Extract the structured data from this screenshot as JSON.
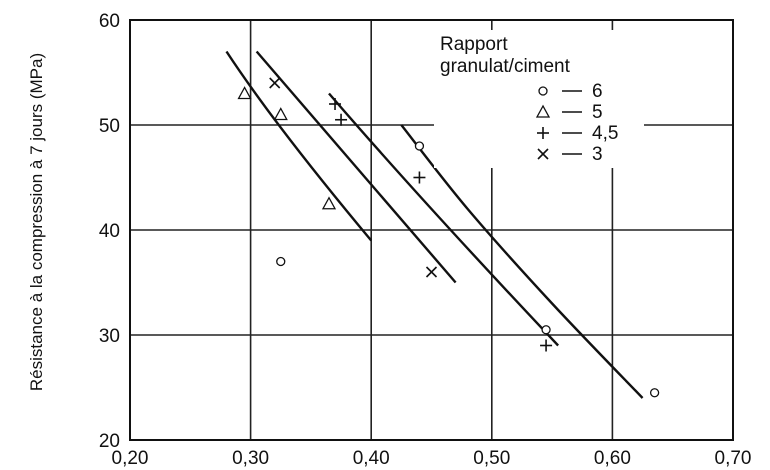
{
  "chart_data": {
    "type": "scatter",
    "xlabel": "",
    "ylabel": "Résistance à la compression à 7 jours (MPa)",
    "xlim": [
      0.2,
      0.7
    ],
    "ylim": [
      20,
      60
    ],
    "x_ticks": [
      "0,20",
      "0,30",
      "0,40",
      "0,50",
      "0,60",
      "0,70"
    ],
    "y_ticks": [
      "20",
      "30",
      "40",
      "50",
      "60"
    ],
    "grid": true,
    "legend": {
      "title_lines": [
        "Rapport",
        "granulat/ciment"
      ],
      "placement": "top-right",
      "entries": [
        {
          "symbol": "○",
          "label": "6"
        },
        {
          "symbol": "△",
          "label": "5"
        },
        {
          "symbol": "+",
          "label": "4,5"
        },
        {
          "symbol": "×",
          "label": "3"
        }
      ]
    },
    "series": [
      {
        "name": "6",
        "marker": "○",
        "points": [
          [
            0.325,
            37
          ],
          [
            0.44,
            48
          ],
          [
            0.545,
            30.5
          ],
          [
            0.635,
            24.5
          ]
        ],
        "curve": [
          [
            0.425,
            50
          ],
          [
            0.48,
            42
          ],
          [
            0.55,
            33
          ],
          [
            0.625,
            24
          ]
        ]
      },
      {
        "name": "5",
        "marker": "△",
        "points": [
          [
            0.295,
            53
          ],
          [
            0.325,
            51
          ],
          [
            0.365,
            42.5
          ]
        ],
        "curve": [
          [
            0.28,
            57
          ],
          [
            0.33,
            49
          ],
          [
            0.4,
            39
          ]
        ]
      },
      {
        "name": "4,5",
        "marker": "+",
        "points": [
          [
            0.37,
            52
          ],
          [
            0.375,
            50.5
          ],
          [
            0.44,
            45
          ],
          [
            0.545,
            29
          ]
        ],
        "curve": [
          [
            0.365,
            53
          ],
          [
            0.45,
            42
          ],
          [
            0.555,
            29
          ]
        ]
      },
      {
        "name": "3",
        "marker": "×",
        "points": [
          [
            0.32,
            54
          ],
          [
            0.45,
            36
          ]
        ],
        "curve": [
          [
            0.305,
            57
          ],
          [
            0.38,
            47
          ],
          [
            0.47,
            35
          ]
        ]
      }
    ]
  }
}
